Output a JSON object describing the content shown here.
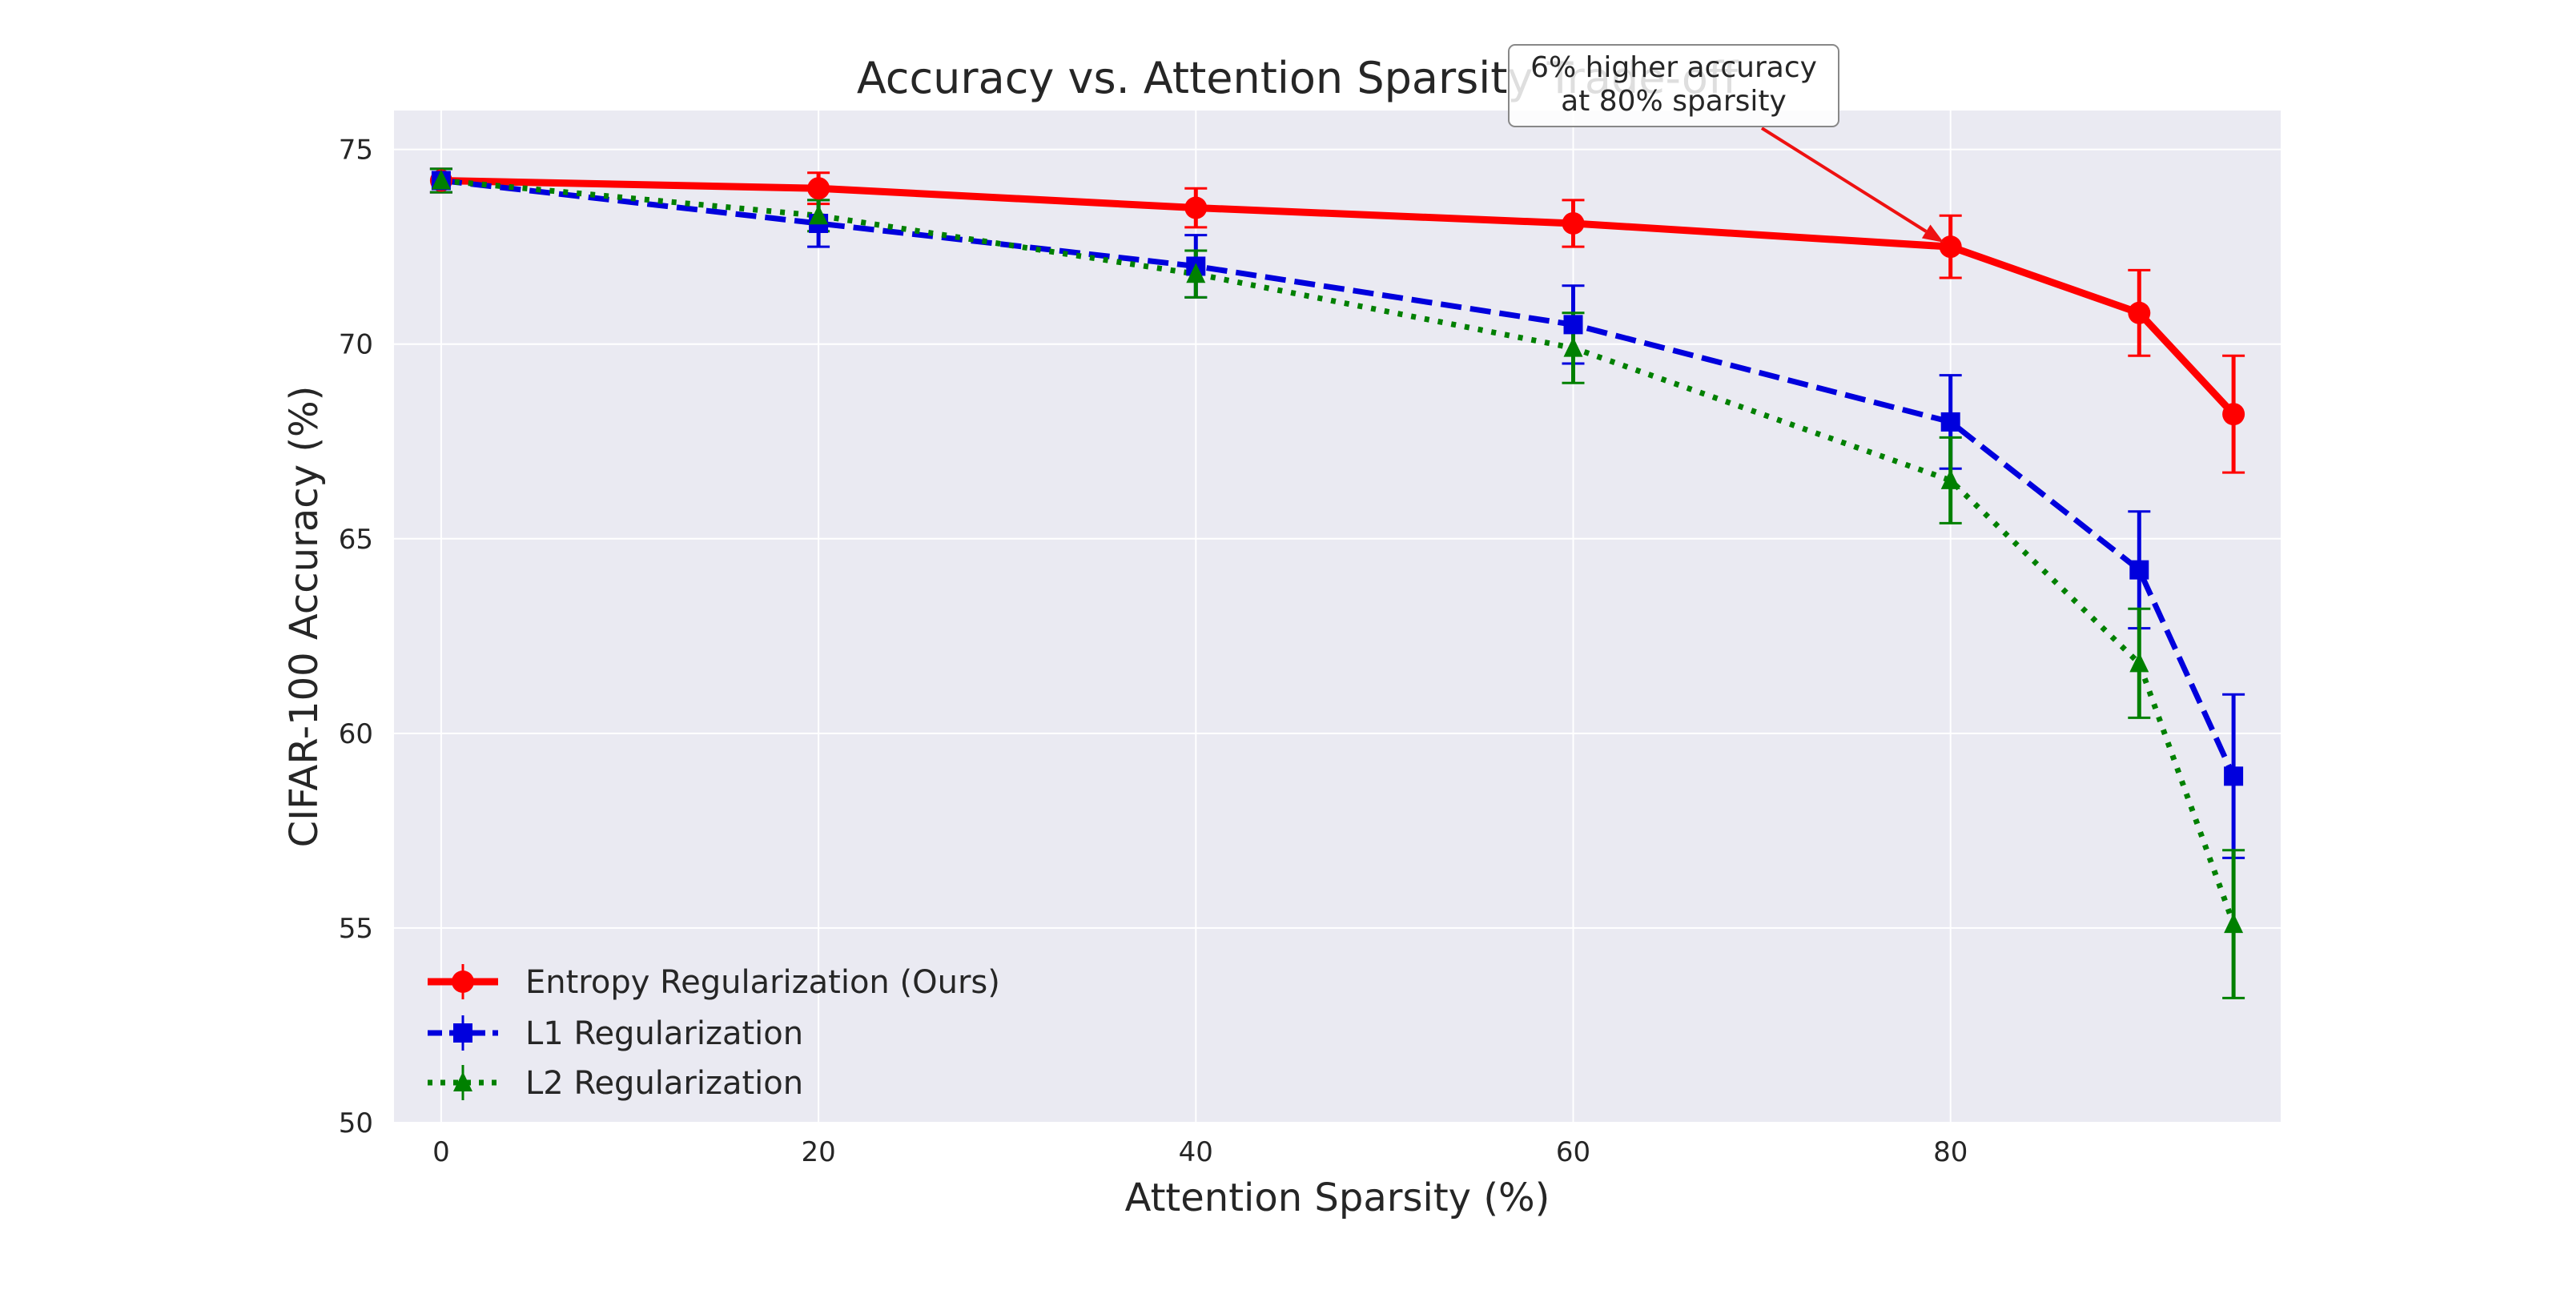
{
  "chart_data": {
    "type": "line",
    "title": "Accuracy vs. Attention Sparsity Trade-off",
    "xlabel": "Attention Sparsity (%)",
    "ylabel": "CIFAR-100 Accuracy (%)",
    "xlim": [
      -2.5,
      97.5
    ],
    "ylim": [
      50,
      76
    ],
    "x_ticks": [
      0,
      20,
      40,
      60,
      80
    ],
    "y_ticks": [
      50,
      55,
      60,
      65,
      70,
      75
    ],
    "grid": true,
    "legend_position": "lower-left",
    "x": [
      0,
      20,
      40,
      60,
      80,
      90,
      95
    ],
    "series": [
      {
        "name": "Entropy Regularization (Ours)",
        "color": "#ff0000",
        "marker": "circle",
        "linestyle": "solid",
        "values": [
          74.2,
          74.0,
          73.5,
          73.1,
          72.5,
          70.8,
          68.2
        ],
        "errors": [
          0.3,
          0.4,
          0.5,
          0.6,
          0.8,
          1.1,
          1.5
        ]
      },
      {
        "name": "L1 Regularization",
        "color": "#0000dd",
        "marker": "square",
        "linestyle": "dashed",
        "values": [
          74.2,
          73.1,
          72.0,
          70.5,
          68.0,
          64.2,
          58.9
        ],
        "errors": [
          0.3,
          0.6,
          0.8,
          1.0,
          1.2,
          1.5,
          2.1
        ]
      },
      {
        "name": "L2 Regularization",
        "color": "#008000",
        "marker": "triangle",
        "linestyle": "dotted",
        "values": [
          74.2,
          73.3,
          71.8,
          69.9,
          66.5,
          61.8,
          55.1
        ],
        "errors": [
          0.3,
          0.4,
          0.6,
          0.9,
          1.1,
          1.4,
          1.9
        ]
      }
    ],
    "annotation": {
      "lines": [
        "6% higher accuracy",
        "at 80% sparsity"
      ],
      "target_x": 80,
      "target_y": 72.5
    }
  }
}
